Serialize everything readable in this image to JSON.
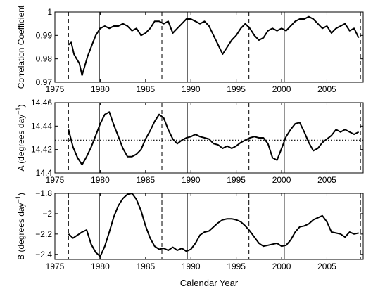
{
  "chart_data": [
    {
      "type": "line",
      "title": "",
      "xlabel": "",
      "ylabel": "Correlation Coefficient",
      "xlim": [
        1975,
        2009
      ],
      "ylim": [
        0.97,
        1.0
      ],
      "xticks": [
        1975,
        1980,
        1985,
        1990,
        1995,
        2000,
        2005
      ],
      "yticks": [
        0.97,
        0.98,
        0.99,
        1.0
      ],
      "ytick_labels": [
        "0.97",
        "0.98",
        "0.99",
        "1"
      ],
      "grid": false,
      "series": [
        {
          "color": "#000000",
          "style": "solid",
          "x": [
            1976.5,
            1976.8,
            1977.1,
            1977.4,
            1977.7,
            1978.0,
            1978.3,
            1978.6,
            1979.0,
            1979.5,
            1980.0,
            1980.5,
            1981.0,
            1981.5,
            1982.0,
            1982.5,
            1983.0,
            1983.5,
            1984.0,
            1984.5,
            1985.0,
            1985.5,
            1986.0,
            1986.5,
            1987.0,
            1987.5,
            1988.0,
            1988.5,
            1989.0,
            1989.5,
            1990.0,
            1990.5,
            1991.0,
            1991.5,
            1992.0,
            1992.5,
            1993.0,
            1993.5,
            1994.0,
            1994.5,
            1995.0,
            1995.5,
            1996.0,
            1996.5,
            1997.0,
            1997.5,
            1998.0,
            1998.5,
            1999.0,
            1999.5,
            2000.0,
            2000.5,
            2001.0,
            2001.5,
            2002.0,
            2002.5,
            2003.0,
            2003.5,
            2004.0,
            2004.5,
            2005.0,
            2005.5,
            2006.0,
            2006.5,
            2007.0,
            2007.5,
            2008.0,
            2008.5
          ],
          "y": [
            0.986,
            0.987,
            0.982,
            0.98,
            0.978,
            0.973,
            0.977,
            0.981,
            0.985,
            0.99,
            0.993,
            0.994,
            0.993,
            0.994,
            0.994,
            0.995,
            0.994,
            0.992,
            0.993,
            0.99,
            0.991,
            0.993,
            0.996,
            0.996,
            0.995,
            0.996,
            0.991,
            0.993,
            0.995,
            0.997,
            0.997,
            0.996,
            0.995,
            0.996,
            0.994,
            0.99,
            0.986,
            0.982,
            0.985,
            0.988,
            0.99,
            0.993,
            0.995,
            0.993,
            0.99,
            0.988,
            0.989,
            0.992,
            0.993,
            0.992,
            0.993,
            0.992,
            0.994,
            0.996,
            0.997,
            0.997,
            0.998,
            0.997,
            0.995,
            0.993,
            0.994,
            0.991,
            0.993,
            0.994,
            0.995,
            0.992,
            0.993,
            0.989
          ]
        }
      ],
      "vlines_solid": [
        1979.9,
        1989.6,
        2000.3
      ],
      "vlines_dashed": [
        1976.5,
        1986.8,
        1996.4,
        2008.7
      ]
    },
    {
      "type": "line",
      "title": "",
      "xlabel": "",
      "ylabel": "A (degrees day",
      "ylabel_superscript": "−1",
      "ylabel_close": ")",
      "xlim": [
        1975,
        2009
      ],
      "ylim": [
        14.4,
        14.46
      ],
      "xticks": [
        1975,
        1980,
        1985,
        1990,
        1995,
        2000,
        2005
      ],
      "yticks": [
        14.4,
        14.42,
        14.44,
        14.46
      ],
      "ytick_labels": [
        "14.4",
        "14.42",
        "14.44",
        "14.46"
      ],
      "grid": false,
      "hline_dotted": 14.428,
      "series": [
        {
          "color": "#000000",
          "style": "solid",
          "x": [
            1976.5,
            1977.0,
            1977.5,
            1978.0,
            1978.5,
            1979.0,
            1979.5,
            1980.0,
            1980.5,
            1981.0,
            1981.5,
            1982.0,
            1982.5,
            1983.0,
            1983.5,
            1984.0,
            1984.5,
            1985.0,
            1985.5,
            1986.0,
            1986.5,
            1987.0,
            1987.5,
            1988.0,
            1988.5,
            1989.0,
            1989.5,
            1990.0,
            1990.5,
            1991.0,
            1991.5,
            1992.0,
            1992.5,
            1993.0,
            1993.5,
            1994.0,
            1994.5,
            1995.0,
            1995.5,
            1996.0,
            1996.5,
            1997.0,
            1997.5,
            1998.0,
            1998.5,
            1999.0,
            1999.5,
            2000.0,
            2000.5,
            2001.0,
            2001.5,
            2002.0,
            2002.5,
            2003.0,
            2003.5,
            2004.0,
            2004.5,
            2005.0,
            2005.5,
            2006.0,
            2006.5,
            2007.0,
            2007.5,
            2008.0,
            2008.5
          ],
          "y": [
            14.437,
            14.422,
            14.413,
            14.407,
            14.414,
            14.422,
            14.432,
            14.442,
            14.45,
            14.452,
            14.441,
            14.431,
            14.421,
            14.414,
            14.414,
            14.416,
            14.42,
            14.429,
            14.436,
            14.444,
            14.45,
            14.447,
            14.437,
            14.429,
            14.425,
            14.428,
            14.43,
            14.431,
            14.433,
            14.431,
            14.43,
            14.429,
            14.425,
            14.424,
            14.421,
            14.423,
            14.421,
            14.423,
            14.426,
            14.428,
            14.43,
            14.431,
            14.43,
            14.43,
            14.425,
            14.413,
            14.411,
            14.421,
            14.431,
            14.437,
            14.442,
            14.443,
            14.435,
            14.426,
            14.419,
            14.421,
            14.426,
            14.429,
            14.432,
            14.437,
            14.435,
            14.437,
            14.435,
            14.433,
            14.435
          ]
        }
      ],
      "vlines_solid": [
        1979.9,
        1989.6,
        2000.3
      ],
      "vlines_dashed": [
        1976.5,
        1986.8,
        1996.4,
        2008.7
      ]
    },
    {
      "type": "line",
      "title": "",
      "xlabel": "Calendar Year",
      "ylabel": "B (degrees day",
      "ylabel_superscript": "−1",
      "ylabel_close": ")",
      "xlim": [
        1975,
        2009
      ],
      "ylim": [
        -2.45,
        -1.8
      ],
      "xticks": [
        1975,
        1980,
        1985,
        1990,
        1995,
        2000,
        2005
      ],
      "yticks": [
        -2.4,
        -2.2,
        -2.0,
        -1.8
      ],
      "ytick_labels": [
        "−2.4",
        "−2.2",
        "−2",
        "−1.8"
      ],
      "grid": false,
      "series": [
        {
          "color": "#000000",
          "style": "solid",
          "x": [
            1976.5,
            1977.0,
            1977.5,
            1978.0,
            1978.5,
            1979.0,
            1979.5,
            1980.0,
            1980.5,
            1981.0,
            1981.5,
            1982.0,
            1982.5,
            1983.0,
            1983.5,
            1984.0,
            1984.5,
            1985.0,
            1985.5,
            1986.0,
            1986.5,
            1987.0,
            1987.5,
            1988.0,
            1988.5,
            1989.0,
            1989.5,
            1990.0,
            1990.5,
            1991.0,
            1991.5,
            1992.0,
            1992.5,
            1993.0,
            1993.5,
            1994.0,
            1994.5,
            1995.0,
            1995.5,
            1996.0,
            1996.5,
            1997.0,
            1997.5,
            1998.0,
            1998.5,
            1999.0,
            1999.5,
            2000.0,
            2000.5,
            2001.0,
            2001.5,
            2002.0,
            2002.5,
            2003.0,
            2003.5,
            2004.0,
            2004.5,
            2005.0,
            2005.5,
            2006.0,
            2006.5,
            2007.0,
            2007.5,
            2008.0,
            2008.5
          ],
          "y": [
            -2.2,
            -2.24,
            -2.21,
            -2.18,
            -2.16,
            -2.3,
            -2.38,
            -2.42,
            -2.32,
            -2.18,
            -2.03,
            -1.92,
            -1.85,
            -1.81,
            -1.8,
            -1.86,
            -1.97,
            -2.12,
            -2.24,
            -2.32,
            -2.35,
            -2.34,
            -2.36,
            -2.33,
            -2.36,
            -2.34,
            -2.37,
            -2.35,
            -2.29,
            -2.21,
            -2.18,
            -2.17,
            -2.13,
            -2.09,
            -2.06,
            -2.05,
            -2.05,
            -2.06,
            -2.08,
            -2.12,
            -2.17,
            -2.23,
            -2.29,
            -2.32,
            -2.31,
            -2.3,
            -2.29,
            -2.32,
            -2.31,
            -2.26,
            -2.18,
            -2.13,
            -2.12,
            -2.1,
            -2.06,
            -2.04,
            -2.02,
            -2.08,
            -2.18,
            -2.19,
            -2.2,
            -2.23,
            -2.18,
            -2.2,
            -2.19
          ]
        }
      ],
      "vlines_solid": [
        1979.9,
        1989.6,
        2000.3
      ],
      "vlines_dashed": [
        1976.5,
        1986.8,
        1996.4,
        2008.7
      ]
    }
  ]
}
